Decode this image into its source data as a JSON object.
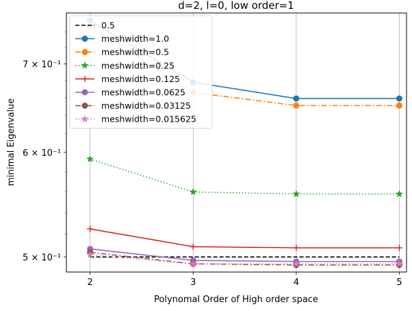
{
  "chart_data": {
    "type": "line",
    "title": "d=2, l=0, low order=1",
    "xlabel": "Polynomal Order of High order space",
    "ylabel": "minimal Eigenvalue",
    "y_scale": "log",
    "grid": "vertical",
    "legend_position": "top-left",
    "x": [
      2,
      3,
      4,
      5
    ],
    "x_tick_labels": [
      "2",
      "3",
      "4",
      "5"
    ],
    "y_tick_labels": [
      {
        "value": 0.5,
        "text": "5 × 10⁻¹"
      },
      {
        "value": 0.6,
        "text": "6 × 10⁻¹"
      },
      {
        "value": 0.7,
        "text": "7 × 10⁻¹"
      }
    ],
    "xlim": [
      1.77,
      5.07
    ],
    "ylim": [
      0.487,
      0.765
    ],
    "series": [
      {
        "name": "0.5",
        "values": [
          0.5,
          0.5,
          0.5,
          0.5
        ],
        "color": "#000000",
        "dash": "dashed",
        "marker": "none"
      },
      {
        "name": "meshwidth=1.0",
        "values": [
          0.755,
          0.678,
          0.659,
          0.659
        ],
        "color": "#1f77b4",
        "dash": "solid",
        "marker": "circle"
      },
      {
        "name": "meshwidth=0.5",
        "values": [
          0.748,
          0.666,
          0.651,
          0.651
        ],
        "color": "#ff7f0e",
        "dash": "dashdot",
        "marker": "circle"
      },
      {
        "name": "meshwidth=0.25",
        "values": [
          0.593,
          0.56,
          0.558,
          0.558
        ],
        "color": "#2ca02c",
        "dash": "dotted",
        "marker": "star"
      },
      {
        "name": "meshwidth=0.125",
        "values": [
          0.525,
          0.509,
          0.508,
          0.508
        ],
        "color": "#d62728",
        "dash": "solid",
        "marker": "plus"
      },
      {
        "name": "meshwidth=0.0625",
        "values": [
          0.507,
          0.497,
          0.496,
          0.496
        ],
        "color": "#9467bd",
        "dash": "solid",
        "marker": "circle"
      },
      {
        "name": "meshwidth=0.03125",
        "values": [
          0.504,
          0.494,
          0.493,
          0.493
        ],
        "color": "#8c564b",
        "dash": "dashdot",
        "marker": "circle"
      },
      {
        "name": "meshwidth=0.015625",
        "values": [
          0.502,
          0.494,
          0.494,
          0.494
        ],
        "color": "#e377c2",
        "dash": "dotted",
        "marker": "star"
      }
    ]
  }
}
